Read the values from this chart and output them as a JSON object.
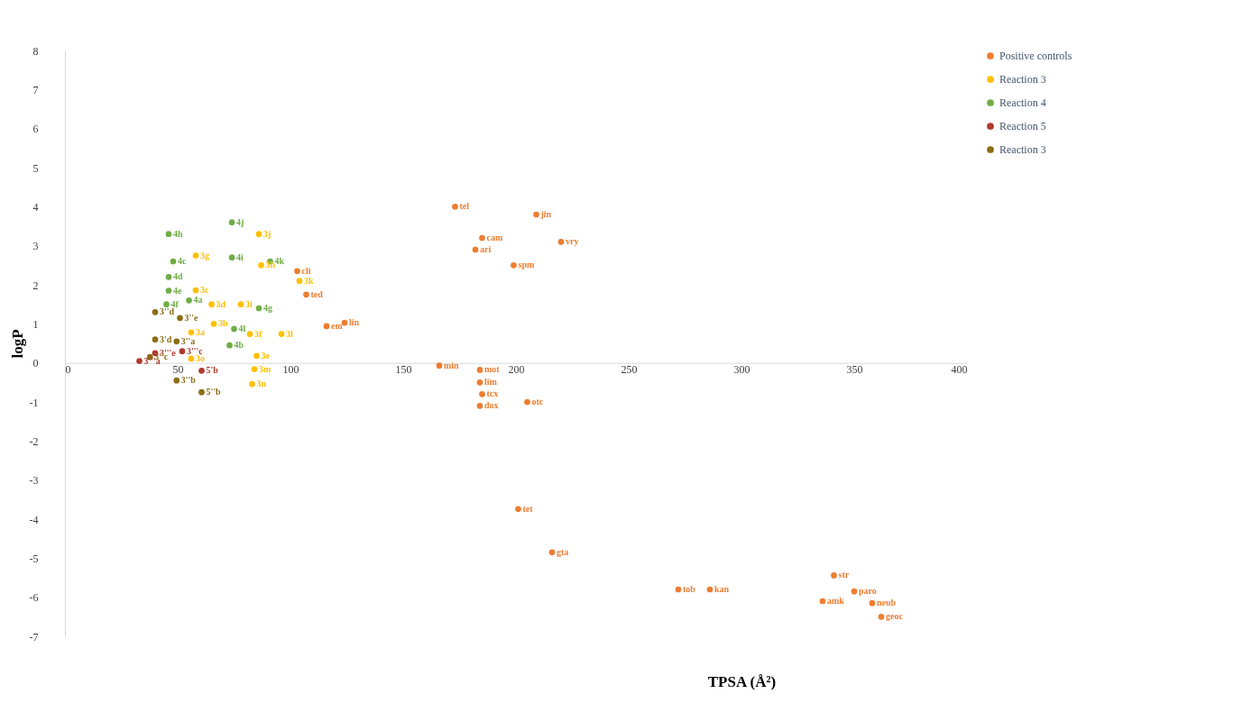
{
  "chart_data": {
    "type": "scatter",
    "xlabel": "TPSA (Å²)",
    "ylabel": "logP",
    "xlim": [
      0,
      400
    ],
    "xticks": [
      0,
      50,
      100,
      150,
      200,
      250,
      300,
      350,
      400
    ],
    "ylim": [
      -7,
      8
    ],
    "yticks": [
      -7,
      -6,
      -5,
      -4,
      -3,
      -2,
      -1,
      0,
      1,
      2,
      3,
      4,
      5,
      6,
      7,
      8
    ],
    "grid": false,
    "legend": "right",
    "marker": "circle",
    "series": [
      {
        "name": "Positive controls",
        "color": "#ed7d31",
        "x": [
          173,
          209,
          185,
          182,
          220,
          199,
          103,
          107,
          116,
          124,
          166,
          184,
          184,
          185,
          184,
          205,
          201,
          216,
          272,
          286,
          341,
          336,
          350,
          358,
          362
        ],
        "values": [
          4.0,
          3.8,
          3.2,
          2.9,
          3.1,
          2.5,
          2.35,
          1.75,
          0.94,
          1.03,
          -0.07,
          -0.18,
          -0.5,
          -0.8,
          -1.1,
          -1.0,
          -3.74,
          -4.85,
          -5.8,
          -5.8,
          -5.44,
          -6.1,
          -5.85,
          -6.15,
          -6.5
        ]
      },
      {
        "name": "Reaction 3",
        "color": "#ffc000",
        "x": [
          86,
          87,
          58,
          58,
          65,
          78,
          104,
          56,
          66,
          82,
          96,
          85,
          84,
          83,
          56
        ],
        "values": [
          3.3,
          2.5,
          2.75,
          1.86,
          1.5,
          1.5,
          2.1,
          0.78,
          1.0,
          0.74,
          0.74,
          0.18,
          -0.16,
          -0.54,
          0.11
        ]
      },
      {
        "name": "Reaction 4",
        "color": "#70ad47",
        "x": [
          46,
          48,
          46,
          46,
          74,
          74,
          91,
          55,
          86,
          75,
          73,
          45
        ],
        "values": [
          3.3,
          2.6,
          2.2,
          1.85,
          3.6,
          2.7,
          2.6,
          1.6,
          1.4,
          0.87,
          0.45,
          1.5
        ]
      },
      {
        "name": "Reaction 5",
        "color": "#b03a2e",
        "x": [
          40,
          33,
          60.6,
          52
        ],
        "values": [
          0.25,
          0.05,
          -0.2,
          0.3
        ]
      },
      {
        "name": "Reaction 3",
        "color": "#8b6d14",
        "x": [
          40,
          51,
          40,
          49.5,
          37.7,
          49.5,
          60.6
        ],
        "values": [
          1.3,
          1.15,
          0.6,
          0.55,
          0.15,
          -0.45,
          -0.75
        ]
      }
    ],
    "annotations": [
      {
        "text": "tel",
        "x": 173,
        "y": 4.0
      },
      {
        "text": "jin",
        "x": 209,
        "y": 3.8
      },
      {
        "text": "cam",
        "x": 185,
        "y": 3.2
      },
      {
        "text": "ari",
        "x": 182,
        "y": 2.9
      },
      {
        "text": "vry",
        "x": 220,
        "y": 3.1
      },
      {
        "text": "spm",
        "x": 199,
        "y": 2.5
      },
      {
        "text": "cli",
        "x": 103,
        "y": 2.35
      },
      {
        "text": "ted",
        "x": 107,
        "y": 1.75
      },
      {
        "text": "em",
        "x": 116,
        "y": 0.94
      },
      {
        "text": "lin",
        "x": 124,
        "y": 1.03
      },
      {
        "text": "min",
        "x": 166,
        "y": -0.07
      },
      {
        "text": "mot",
        "x": 184,
        "y": -0.18
      },
      {
        "text": "lim",
        "x": 184,
        "y": -0.5
      },
      {
        "text": "tcx",
        "x": 185,
        "y": -0.8
      },
      {
        "text": "dox",
        "x": 184,
        "y": -1.1
      },
      {
        "text": "otc",
        "x": 205,
        "y": -1.0
      },
      {
        "text": "tet",
        "x": 201,
        "y": -3.74
      },
      {
        "text": "gta",
        "x": 216,
        "y": -4.85
      },
      {
        "text": "tob",
        "x": 272,
        "y": -5.8
      },
      {
        "text": "kan",
        "x": 286,
        "y": -5.8
      },
      {
        "text": "str",
        "x": 341,
        "y": -5.44
      },
      {
        "text": "amk",
        "x": 336,
        "y": -6.1
      },
      {
        "text": "paro",
        "x": 350,
        "y": -5.85
      },
      {
        "text": "neub",
        "x": 358,
        "y": -6.15
      },
      {
        "text": "geoc",
        "x": 362,
        "y": -6.5
      },
      {
        "text": "3j",
        "x": 86,
        "y": 3.3
      },
      {
        "text": "3h",
        "x": 87,
        "y": 2.5
      },
      {
        "text": "3g",
        "x": 58,
        "y": 2.75
      },
      {
        "text": "3c",
        "x": 58,
        "y": 1.86
      },
      {
        "text": "3d",
        "x": 65,
        "y": 1.5
      },
      {
        "text": "3i",
        "x": 78,
        "y": 1.5
      },
      {
        "text": "3k",
        "x": 104,
        "y": 2.1
      },
      {
        "text": "3a",
        "x": 56,
        "y": 0.78
      },
      {
        "text": "3b",
        "x": 66,
        "y": 1.0
      },
      {
        "text": "3f",
        "x": 82,
        "y": 0.74
      },
      {
        "text": "3l",
        "x": 96,
        "y": 0.74
      },
      {
        "text": "3e",
        "x": 85,
        "y": 0.18
      },
      {
        "text": "3m",
        "x": 84,
        "y": -0.16
      },
      {
        "text": "3n",
        "x": 83,
        "y": -0.54
      },
      {
        "text": "3o",
        "x": 56,
        "y": 0.11
      },
      {
        "text": "4h",
        "x": 46,
        "y": 3.3
      },
      {
        "text": "4c",
        "x": 48,
        "y": 2.6
      },
      {
        "text": "4d",
        "x": 46,
        "y": 2.2
      },
      {
        "text": "4e",
        "x": 46,
        "y": 1.85
      },
      {
        "text": "4j",
        "x": 74,
        "y": 3.6
      },
      {
        "text": "4i",
        "x": 74,
        "y": 2.7
      },
      {
        "text": "4k",
        "x": 91,
        "y": 2.6
      },
      {
        "text": "4a",
        "x": 55,
        "y": 1.6
      },
      {
        "text": "4g",
        "x": 86,
        "y": 1.4
      },
      {
        "text": "4l",
        "x": 75,
        "y": 0.87
      },
      {
        "text": "4b",
        "x": 73,
        "y": 0.45
      },
      {
        "text": "4f",
        "x": 45,
        "y": 1.5
      },
      {
        "text": "3'''e",
        "x": 40,
        "y": 0.25
      },
      {
        "text": "3'''a",
        "x": 33,
        "y": 0.05
      },
      {
        "text": "5'b",
        "x": 60.6,
        "y": -0.2
      },
      {
        "text": "3'''c",
        "x": 52,
        "y": 0.3
      },
      {
        "text": "3''d",
        "x": 40,
        "y": 1.3
      },
      {
        "text": "3''e",
        "x": 51,
        "y": 1.15
      },
      {
        "text": "3'd",
        "x": 40,
        "y": 0.6
      },
      {
        "text": "3''a",
        "x": 49.5,
        "y": 0.55
      },
      {
        "text": "3''c",
        "x": 37.7,
        "y": 0.15
      },
      {
        "text": "3''b",
        "x": 49.5,
        "y": -0.45
      },
      {
        "text": "5''b",
        "x": 60.6,
        "y": -0.75
      }
    ]
  }
}
